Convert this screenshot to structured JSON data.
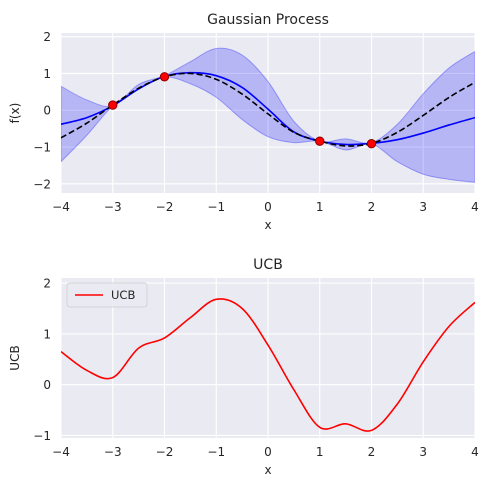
{
  "chart_data": [
    {
      "type": "line",
      "title": "Gaussian Process",
      "xlabel": "x",
      "ylabel": "f(x)",
      "xlim": [
        -4,
        4
      ],
      "ylim": [
        -2.25,
        2.1
      ],
      "xticks": [
        -4,
        -3,
        -2,
        -1,
        0,
        1,
        2,
        3,
        4
      ],
      "xtick_labels": [
        "−4",
        "−3",
        "−2",
        "−1",
        "0",
        "1",
        "2",
        "3",
        "4"
      ],
      "yticks": [
        -2,
        -1,
        0,
        1,
        2
      ],
      "ytick_labels": [
        "−2",
        "−1",
        "0",
        "1",
        "2"
      ],
      "grid": true,
      "series": [
        {
          "role": "confidence-band",
          "color": "#0000ff",
          "x": [
            -4,
            -3.5,
            -3,
            -2.5,
            -2,
            -1.5,
            -1,
            -0.5,
            0,
            0.5,
            1,
            1.5,
            2,
            2.5,
            3,
            3.5,
            4
          ],
          "lower": [
            -1.4,
            -0.68,
            0.12,
            0.58,
            0.9,
            0.72,
            0.35,
            -0.25,
            -0.72,
            -0.88,
            -0.84,
            -1.08,
            -0.92,
            -1.4,
            -1.74,
            -1.88,
            -1.96
          ],
          "upper": [
            0.65,
            0.28,
            0.12,
            0.7,
            0.94,
            1.32,
            1.68,
            1.5,
            0.78,
            -0.3,
            -0.84,
            -0.78,
            -0.88,
            -0.38,
            0.45,
            1.15,
            1.6
          ]
        },
        {
          "role": "mean",
          "color": "#0000ff",
          "x": [
            -4,
            -3.5,
            -3,
            -2.5,
            -2,
            -1.5,
            -1,
            -0.5,
            0,
            0.5,
            1,
            1.5,
            2,
            2.5,
            3,
            3.5,
            4
          ],
          "y": [
            -0.38,
            -0.2,
            0.12,
            0.58,
            0.92,
            1.02,
            0.94,
            0.62,
            0.03,
            -0.59,
            -0.84,
            -0.93,
            -0.9,
            -0.8,
            -0.62,
            -0.4,
            -0.2
          ]
        },
        {
          "role": "true-function",
          "color": "#000000",
          "dashed": true,
          "x": [
            -4,
            -3.5,
            -3,
            -2.5,
            -2,
            -1.5,
            -1,
            -0.5,
            0,
            0.5,
            1,
            1.5,
            2,
            2.5,
            3,
            3.5,
            4
          ],
          "y": [
            -0.75,
            -0.35,
            0.14,
            0.6,
            0.91,
            1.0,
            0.84,
            0.44,
            -0.1,
            -0.6,
            -0.84,
            -0.97,
            -0.9,
            -0.6,
            -0.14,
            0.35,
            0.76
          ]
        },
        {
          "role": "observations",
          "type": "scatter",
          "color": "#ff0000",
          "edge_color": "#8b0000",
          "x": [
            -3,
            -2,
            1,
            2
          ],
          "y": [
            0.14,
            0.91,
            -0.84,
            -0.91
          ]
        }
      ]
    },
    {
      "type": "line",
      "title": "UCB",
      "xlabel": "x",
      "ylabel": "UCB",
      "xlim": [
        -4,
        4
      ],
      "ylim": [
        -1.05,
        2.1
      ],
      "xticks": [
        -4,
        -3,
        -2,
        -1,
        0,
        1,
        2,
        3,
        4
      ],
      "xtick_labels": [
        "−4",
        "−3",
        "−2",
        "−1",
        "0",
        "1",
        "2",
        "3",
        "4"
      ],
      "yticks": [
        -1,
        0,
        1,
        2
      ],
      "ytick_labels": [
        "−1",
        "0",
        "1",
        "2"
      ],
      "grid": true,
      "legend": "upper left",
      "series": [
        {
          "name": "UCB",
          "color": "#ff0000",
          "x": [
            -4,
            -3.5,
            -3,
            -2.5,
            -2,
            -1.5,
            -1,
            -0.5,
            0,
            0.5,
            1,
            1.5,
            2,
            2.5,
            3,
            3.5,
            4
          ],
          "y": [
            0.65,
            0.28,
            0.14,
            0.72,
            0.92,
            1.32,
            1.68,
            1.5,
            0.78,
            -0.1,
            -0.84,
            -0.77,
            -0.9,
            -0.38,
            0.45,
            1.15,
            1.62
          ]
        }
      ]
    }
  ]
}
